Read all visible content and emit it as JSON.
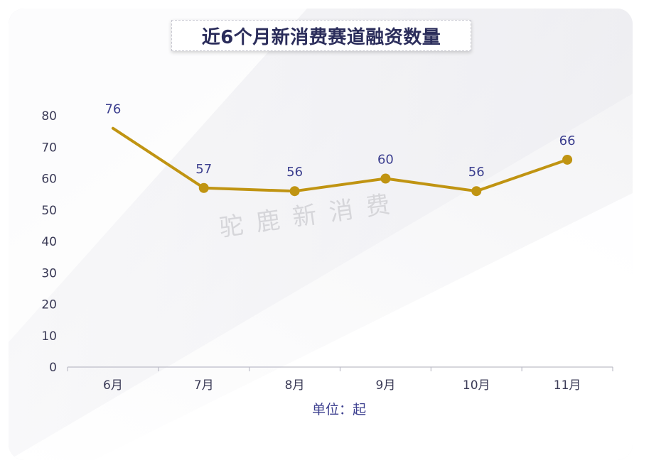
{
  "title": "近6个月新消费赛道融资数量",
  "watermark": "驼鹿新消费",
  "unit_text": "单位：起",
  "colors": {
    "line": "#c09412",
    "marker": "#c09412",
    "data_label": "#3c3f8f",
    "title": "#2b2d5b",
    "axis": "#bdbdc8"
  },
  "chart_data": {
    "type": "line",
    "title": "近6个月新消费赛道融资数量",
    "categories": [
      "6月",
      "7月",
      "8月",
      "9月",
      "10月",
      "11月"
    ],
    "series": [
      {
        "values": [
          76,
          57,
          56,
          60,
          56,
          66
        ],
        "markers": [
          false,
          true,
          true,
          true,
          true,
          true
        ]
      }
    ],
    "ylim": [
      0,
      80
    ],
    "yticks": [
      0,
      10,
      20,
      30,
      40,
      50,
      60,
      70,
      80
    ],
    "xlabel": "单位：起",
    "ylabel": "",
    "grid": false,
    "legend": "none"
  }
}
